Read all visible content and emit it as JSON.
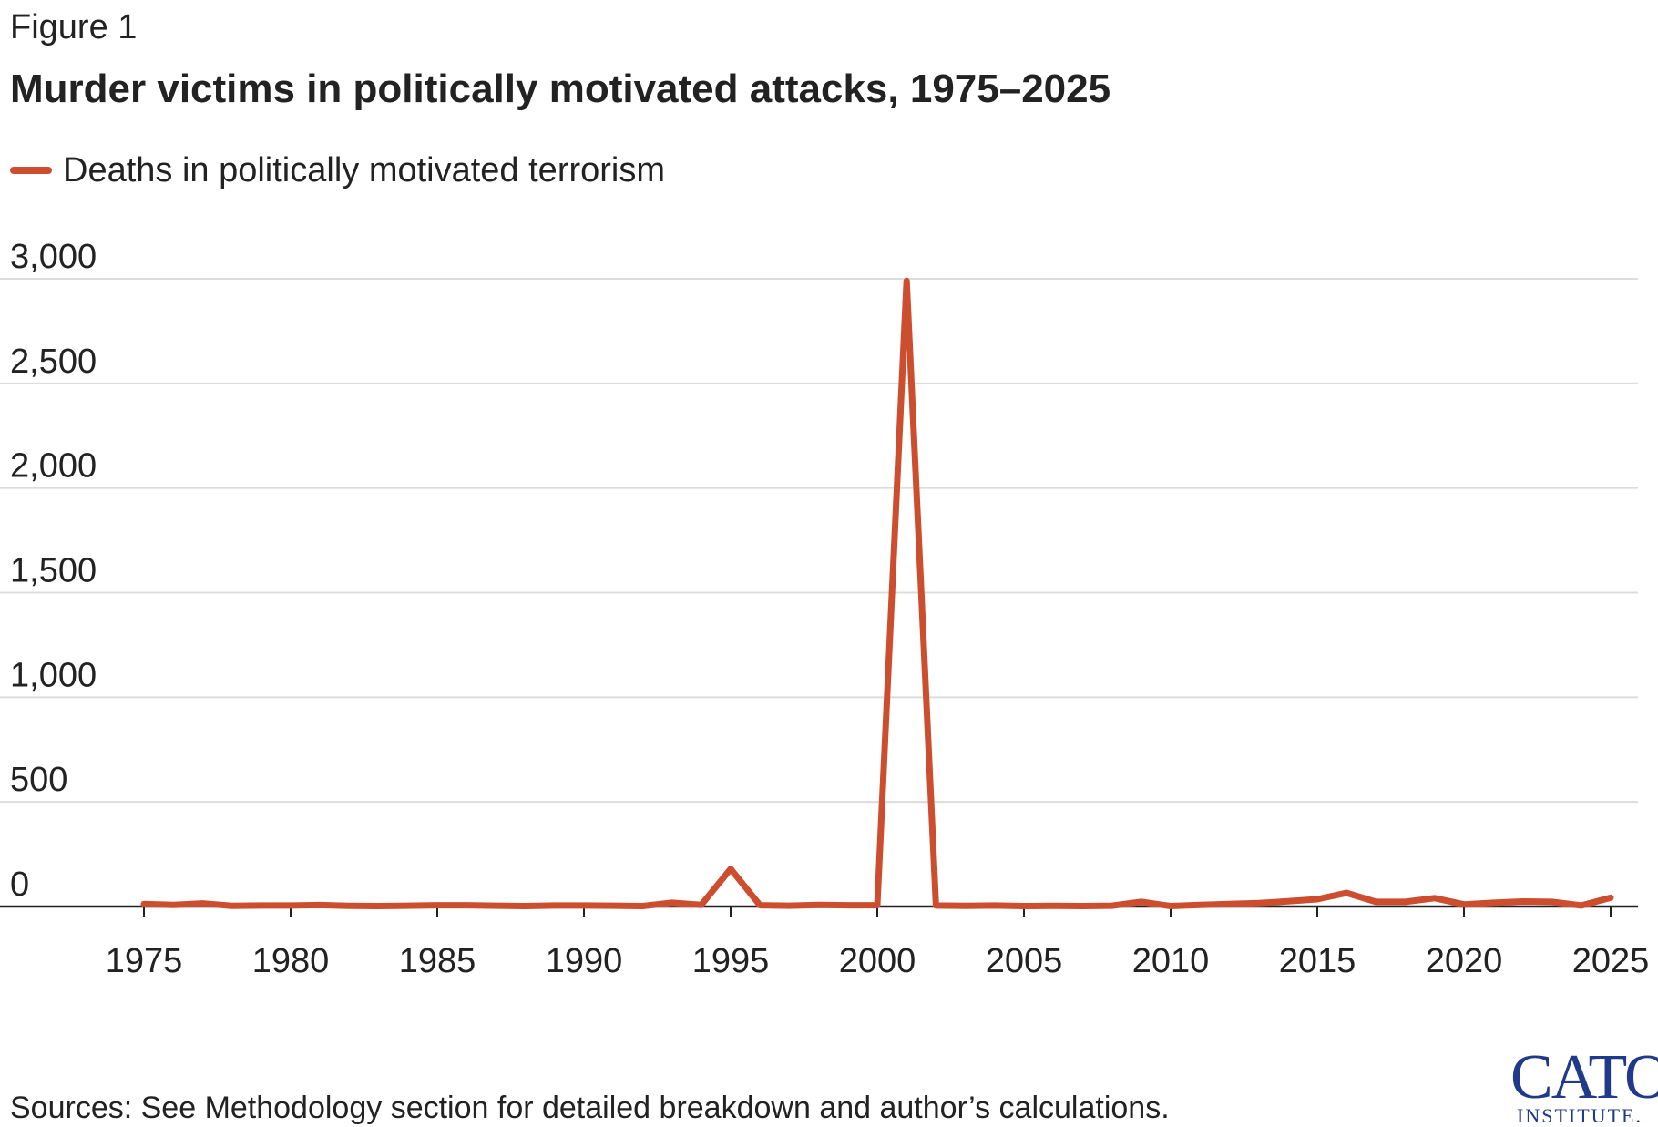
{
  "figure_label": "Figure 1",
  "logo": {
    "main": "CATO",
    "sub": "INSTITUTE."
  },
  "colors": {
    "series": "#cc4e2f",
    "grid": "#dcdcdc",
    "axis": "#222222",
    "text": "#222222"
  },
  "chart_data": {
    "type": "line",
    "title": "Murder victims in politically motivated attacks, 1975–2025",
    "source": "Sources: See Methodology section for detailed breakdown and author’s calculations.",
    "xlabel": "",
    "ylabel": "",
    "xlim": [
      1975,
      2025
    ],
    "ylim": [
      0,
      3000
    ],
    "x_ticks": [
      1975,
      1980,
      1985,
      1990,
      1995,
      2000,
      2005,
      2010,
      2015,
      2020,
      2025
    ],
    "x_tick_labels": [
      "1975",
      "1980",
      "1985",
      "1990",
      "1995",
      "2000",
      "2005",
      "2010",
      "2015",
      "2020",
      "2025"
    ],
    "y_ticks": [
      0,
      500,
      1000,
      1500,
      2000,
      2500,
      3000
    ],
    "y_tick_labels": [
      "0",
      "500",
      "1,000",
      "1,500",
      "2,000",
      "2,500",
      "3,000"
    ],
    "grid": true,
    "legend": "top-left",
    "x": [
      1975,
      1976,
      1977,
      1978,
      1979,
      1980,
      1981,
      1982,
      1983,
      1984,
      1985,
      1986,
      1987,
      1988,
      1989,
      1990,
      1991,
      1992,
      1993,
      1994,
      1995,
      1996,
      1997,
      1998,
      1999,
      2000,
      2001,
      2002,
      2003,
      2004,
      2005,
      2006,
      2007,
      2008,
      2009,
      2010,
      2011,
      2012,
      2013,
      2014,
      2015,
      2016,
      2017,
      2018,
      2019,
      2020,
      2021,
      2022,
      2023,
      2024,
      2025
    ],
    "series": [
      {
        "name": "Deaths in politically motivated terrorism",
        "values": [
          12,
          8,
          15,
          3,
          5,
          5,
          7,
          3,
          2,
          4,
          6,
          6,
          4,
          2,
          5,
          5,
          4,
          2,
          18,
          8,
          180,
          6,
          4,
          8,
          6,
          6,
          2990,
          5,
          3,
          5,
          2,
          3,
          2,
          4,
          22,
          2,
          8,
          12,
          16,
          25,
          35,
          65,
          22,
          22,
          40,
          10,
          18,
          24,
          22,
          5,
          42
        ]
      }
    ]
  }
}
